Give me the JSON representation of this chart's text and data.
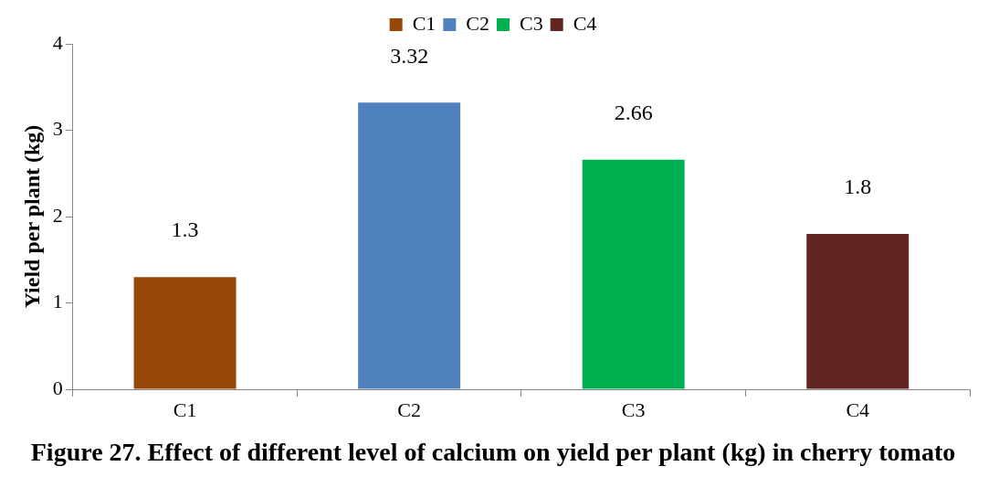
{
  "chart_data": {
    "type": "bar",
    "title": "Figure 27. Effect of different level of calcium on yield per plant (kg) in cherry tomato",
    "ylabel": "Yield per plant (kg)",
    "categories": [
      "C1",
      "C2",
      "C3",
      "C4"
    ],
    "series": [
      {
        "name": "C1",
        "color": "#974706",
        "values": [
          1.3,
          null,
          null,
          null
        ]
      },
      {
        "name": "C2",
        "color": "#4f81bd",
        "values": [
          null,
          3.32,
          null,
          null
        ]
      },
      {
        "name": "C3",
        "color": "#00b050",
        "values": [
          null,
          null,
          2.66,
          null
        ]
      },
      {
        "name": "C4",
        "color": "#632523",
        "values": [
          null,
          null,
          null,
          1.8
        ]
      }
    ],
    "ylim": [
      0,
      4
    ],
    "yticks": [
      0,
      1,
      2,
      3,
      4
    ],
    "grid": false,
    "legend": "top",
    "data_labels": true
  }
}
